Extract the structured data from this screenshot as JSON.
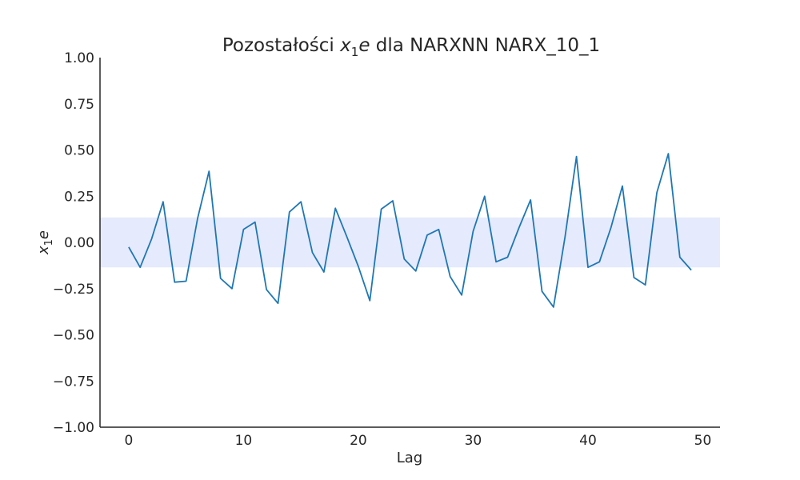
{
  "chart_data": {
    "type": "line",
    "title_prefix": "Pozostałości ",
    "title_var": "x",
    "title_sub": "1",
    "title_var_suffix": "e",
    "title_suffix": " dla NARXNN NARX_10_1",
    "xlabel": "Lag",
    "ylabel_var": "x",
    "ylabel_sub": "1",
    "ylabel_suffix": "e",
    "xlim": [
      -2.5,
      51.5
    ],
    "ylim": [
      -1.0,
      1.0
    ],
    "xticks": [
      0,
      10,
      20,
      30,
      40,
      50
    ],
    "yticks": [
      -1.0,
      -0.75,
      -0.5,
      -0.25,
      0.0,
      0.25,
      0.5,
      0.75,
      1.0
    ],
    "xtick_labels": [
      "0",
      "10",
      "20",
      "30",
      "40",
      "50"
    ],
    "ytick_labels": [
      "−1.00",
      "−0.75",
      "−0.50",
      "−0.25",
      "0.00",
      "0.25",
      "0.50",
      "0.75",
      "1.00"
    ],
    "confidence_band": [
      -0.135,
      0.135
    ],
    "grid": false,
    "colors": {
      "line": "#1f77b4",
      "band": "#e5eafc",
      "axis": "#262626"
    },
    "x": [
      0,
      1,
      2,
      3,
      4,
      5,
      6,
      7,
      8,
      9,
      10,
      11,
      12,
      13,
      14,
      15,
      16,
      17,
      18,
      19,
      20,
      21,
      22,
      23,
      24,
      25,
      26,
      27,
      28,
      29,
      30,
      31,
      32,
      33,
      34,
      35,
      36,
      37,
      38,
      39,
      40,
      41,
      42,
      43,
      44,
      45,
      46,
      47,
      48,
      49
    ],
    "y": [
      -0.025,
      -0.135,
      0.02,
      0.22,
      -0.215,
      -0.21,
      0.13,
      0.385,
      -0.195,
      -0.25,
      0.07,
      0.11,
      -0.255,
      -0.33,
      0.165,
      0.22,
      -0.055,
      -0.16,
      0.185,
      0.03,
      -0.13,
      -0.315,
      0.18,
      0.225,
      -0.09,
      -0.155,
      0.04,
      0.07,
      -0.185,
      -0.285,
      0.06,
      0.25,
      -0.105,
      -0.08,
      0.08,
      0.23,
      -0.265,
      -0.35,
      0.03,
      0.465,
      -0.135,
      -0.105,
      0.08,
      0.305,
      -0.19,
      -0.23,
      0.27,
      0.48,
      -0.08,
      -0.15
    ]
  }
}
